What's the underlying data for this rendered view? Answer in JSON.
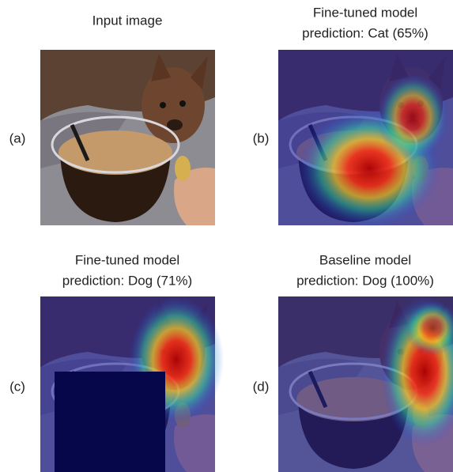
{
  "panels": [
    {
      "label": "(a)",
      "title": [
        "Input image"
      ]
    },
    {
      "label": "(b)",
      "title": [
        "Fine-tuned model",
        "prediction: Cat (65%)"
      ]
    },
    {
      "label": "(c)",
      "title": [
        "Fine-tuned model",
        "prediction: Dog (71%)"
      ]
    },
    {
      "label": "(d)",
      "title": [
        "Baseline model",
        "prediction: Dog (100%)"
      ]
    }
  ]
}
